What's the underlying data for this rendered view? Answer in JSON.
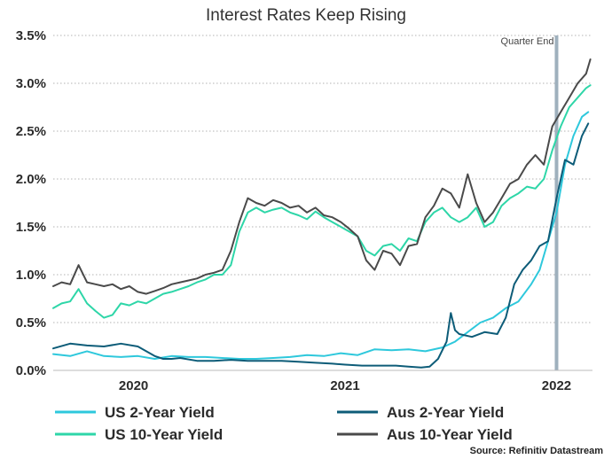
{
  "chart_data": {
    "type": "line",
    "title": "Interest Rates Keep Rising",
    "xlabel": "",
    "ylabel": "",
    "ylim": [
      0,
      3.5
    ],
    "xlim": [
      2019.62,
      2022.17
    ],
    "y_ticks": [
      0,
      0.5,
      1.0,
      1.5,
      2.0,
      2.5,
      3.0,
      3.5
    ],
    "y_tick_labels": [
      "0.0%",
      "0.5%",
      "1.0%",
      "1.5%",
      "2.0%",
      "2.5%",
      "3.0%",
      "3.5%"
    ],
    "x_ticks": [
      2020,
      2021,
      2022
    ],
    "x_tick_labels": [
      "2020",
      "2021",
      "2022"
    ],
    "grid": "horizontal dotted",
    "annotation": {
      "label": "Quarter End",
      "x": 2022.0
    },
    "source": "Source: Refinitiv Datastream",
    "series": [
      {
        "name": "US 2-Year Yield",
        "color": "#2ec8dc",
        "x": [
          2019.62,
          2019.7,
          2019.78,
          2019.86,
          2019.94,
          2020.02,
          2020.1,
          2020.18,
          2020.26,
          2020.34,
          2020.42,
          2020.5,
          2020.58,
          2020.66,
          2020.74,
          2020.82,
          2020.9,
          2020.98,
          2021.06,
          2021.14,
          2021.22,
          2021.3,
          2021.38,
          2021.46,
          2021.52,
          2021.58,
          2021.64,
          2021.7,
          2021.76,
          2021.82,
          2021.88,
          2021.92,
          2021.96,
          2022.0,
          2022.04,
          2022.08,
          2022.12,
          2022.15
        ],
        "values": [
          0.17,
          0.15,
          0.2,
          0.15,
          0.14,
          0.15,
          0.12,
          0.15,
          0.14,
          0.14,
          0.13,
          0.12,
          0.12,
          0.13,
          0.14,
          0.16,
          0.15,
          0.18,
          0.16,
          0.22,
          0.21,
          0.22,
          0.2,
          0.24,
          0.3,
          0.4,
          0.5,
          0.55,
          0.65,
          0.72,
          0.9,
          1.05,
          1.35,
          1.65,
          2.15,
          2.45,
          2.65,
          2.7
        ]
      },
      {
        "name": "US 10-Year Yield",
        "color": "#2ed6a8",
        "x": [
          2019.62,
          2019.66,
          2019.7,
          2019.74,
          2019.78,
          2019.82,
          2019.86,
          2019.9,
          2019.94,
          2019.98,
          2020.02,
          2020.06,
          2020.1,
          2020.14,
          2020.18,
          2020.22,
          2020.26,
          2020.3,
          2020.34,
          2020.38,
          2020.42,
          2020.46,
          2020.5,
          2020.54,
          2020.58,
          2020.62,
          2020.66,
          2020.7,
          2020.74,
          2020.78,
          2020.82,
          2020.86,
          2020.9,
          2020.94,
          2020.98,
          2021.02,
          2021.06,
          2021.1,
          2021.14,
          2021.18,
          2021.22,
          2021.26,
          2021.3,
          2021.34,
          2021.38,
          2021.42,
          2021.46,
          2021.5,
          2021.54,
          2021.58,
          2021.62,
          2021.66,
          2021.7,
          2021.74,
          2021.78,
          2021.82,
          2021.86,
          2021.9,
          2021.94,
          2021.98,
          2022.02,
          2022.06,
          2022.1,
          2022.14,
          2022.16
        ],
        "values": [
          0.65,
          0.7,
          0.72,
          0.85,
          0.7,
          0.62,
          0.55,
          0.58,
          0.7,
          0.68,
          0.72,
          0.7,
          0.75,
          0.8,
          0.82,
          0.85,
          0.88,
          0.92,
          0.95,
          1.0,
          1.0,
          1.1,
          1.45,
          1.65,
          1.7,
          1.65,
          1.68,
          1.7,
          1.65,
          1.62,
          1.58,
          1.66,
          1.6,
          1.55,
          1.5,
          1.45,
          1.4,
          1.25,
          1.2,
          1.3,
          1.32,
          1.25,
          1.38,
          1.35,
          1.55,
          1.65,
          1.7,
          1.6,
          1.55,
          1.6,
          1.7,
          1.5,
          1.55,
          1.72,
          1.8,
          1.85,
          1.92,
          1.9,
          2.0,
          2.3,
          2.55,
          2.75,
          2.85,
          2.95,
          2.98
        ]
      },
      {
        "name": "Aus 2-Year Yield",
        "color": "#0d5c78",
        "x": [
          2019.62,
          2019.7,
          2019.78,
          2019.86,
          2019.94,
          2020.02,
          2020.06,
          2020.1,
          2020.14,
          2020.18,
          2020.22,
          2020.3,
          2020.38,
          2020.46,
          2020.54,
          2020.62,
          2020.7,
          2020.78,
          2020.86,
          2020.94,
          2021.0,
          2021.08,
          2021.16,
          2021.24,
          2021.3,
          2021.36,
          2021.4,
          2021.44,
          2021.48,
          2021.5,
          2021.52,
          2021.54,
          2021.6,
          2021.66,
          2021.72,
          2021.76,
          2021.8,
          2021.84,
          2021.88,
          2021.92,
          2021.96,
          2022.0,
          2022.04,
          2022.08,
          2022.12,
          2022.15
        ],
        "values": [
          0.23,
          0.28,
          0.26,
          0.25,
          0.28,
          0.25,
          0.2,
          0.15,
          0.12,
          0.12,
          0.13,
          0.1,
          0.1,
          0.11,
          0.1,
          0.1,
          0.1,
          0.09,
          0.08,
          0.07,
          0.06,
          0.05,
          0.05,
          0.05,
          0.04,
          0.03,
          0.04,
          0.12,
          0.3,
          0.6,
          0.42,
          0.38,
          0.35,
          0.4,
          0.38,
          0.55,
          0.9,
          1.05,
          1.15,
          1.3,
          1.35,
          1.8,
          2.2,
          2.15,
          2.45,
          2.58
        ]
      },
      {
        "name": "Aus 10-Year Yield",
        "color": "#4a4a4a",
        "x": [
          2019.62,
          2019.66,
          2019.7,
          2019.74,
          2019.78,
          2019.82,
          2019.86,
          2019.9,
          2019.94,
          2019.98,
          2020.02,
          2020.06,
          2020.1,
          2020.14,
          2020.18,
          2020.22,
          2020.26,
          2020.3,
          2020.34,
          2020.38,
          2020.42,
          2020.46,
          2020.5,
          2020.54,
          2020.58,
          2020.62,
          2020.66,
          2020.7,
          2020.74,
          2020.78,
          2020.82,
          2020.86,
          2020.9,
          2020.94,
          2020.98,
          2021.02,
          2021.06,
          2021.1,
          2021.14,
          2021.18,
          2021.22,
          2021.26,
          2021.3,
          2021.34,
          2021.38,
          2021.42,
          2021.46,
          2021.5,
          2021.54,
          2021.58,
          2021.62,
          2021.66,
          2021.7,
          2021.74,
          2021.78,
          2021.82,
          2021.86,
          2021.9,
          2021.94,
          2021.98,
          2022.02,
          2022.06,
          2022.1,
          2022.14,
          2022.16
        ],
        "values": [
          0.88,
          0.92,
          0.9,
          1.1,
          0.92,
          0.9,
          0.88,
          0.9,
          0.85,
          0.88,
          0.82,
          0.8,
          0.83,
          0.86,
          0.9,
          0.92,
          0.94,
          0.96,
          1.0,
          1.02,
          1.05,
          1.25,
          1.55,
          1.8,
          1.75,
          1.72,
          1.78,
          1.75,
          1.7,
          1.72,
          1.65,
          1.7,
          1.62,
          1.6,
          1.55,
          1.48,
          1.4,
          1.15,
          1.05,
          1.25,
          1.22,
          1.1,
          1.3,
          1.32,
          1.6,
          1.72,
          1.9,
          1.85,
          1.7,
          2.05,
          1.75,
          1.55,
          1.65,
          1.8,
          1.95,
          2.0,
          2.15,
          2.25,
          2.15,
          2.55,
          2.7,
          2.85,
          3.0,
          3.1,
          3.25
        ]
      }
    ]
  }
}
